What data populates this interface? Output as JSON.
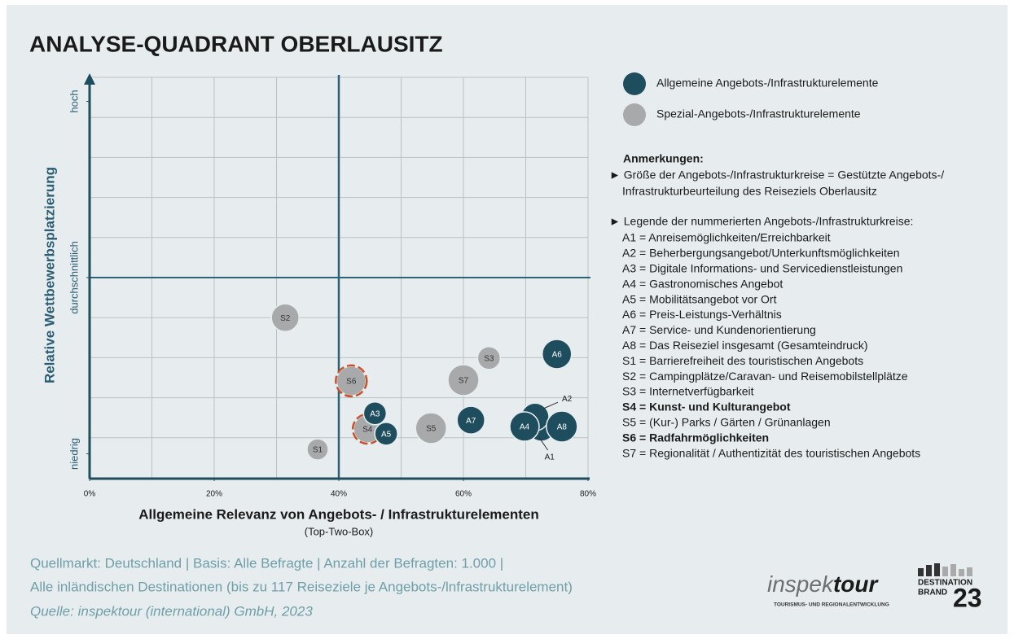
{
  "chart_data": {
    "type": "bubble",
    "title": "ANALYSE-QUADRANT OBERLAUSITZ",
    "xlabel": "Allgemeine Relevanz von Angebots- / Infrastrukturelementen",
    "xlabel_sub": "(Top-Two-Box)",
    "ylabel": "Relative Wettbewerbsplatzierung",
    "xlim": [
      0,
      80
    ],
    "ylim": [
      0,
      100
    ],
    "xticks": [
      {
        "value": 0,
        "label": "0%"
      },
      {
        "value": 20,
        "label": "20%"
      },
      {
        "value": 40,
        "label": "40%"
      },
      {
        "value": 60,
        "label": "60%"
      },
      {
        "value": 80,
        "label": "80%"
      }
    ],
    "yticks": [
      {
        "value": 94,
        "label": "hoch"
      },
      {
        "value": 50,
        "label": "durchschnittlich"
      },
      {
        "value": 6,
        "label": "niedrig"
      }
    ],
    "grid": true,
    "grid_divisions": {
      "x": 8,
      "y": 10
    },
    "quadrant": {
      "x": 40,
      "y": 50
    },
    "series": [
      {
        "name": "Allgemeine Angebots-/Infrastrukturelemente",
        "color": "#1e4d5e",
        "label_color": "#ffffff",
        "labels": [
          "A1",
          "A2",
          "A3",
          "A4",
          "A5",
          "A6",
          "A7",
          "A8"
        ],
        "x": [
          72.5,
          71.5,
          45.8,
          69.8,
          47.6,
          75.0,
          61.2,
          75.8
        ],
        "y": [
          12.6,
          15.2,
          16.1,
          12.8,
          11.0,
          30.9,
          14.4,
          12.8
        ],
        "sizes": [
          17,
          17,
          14,
          18,
          14,
          18,
          17,
          19
        ],
        "callouts": [
          "below",
          "above",
          null,
          null,
          null,
          null,
          null,
          null
        ]
      },
      {
        "name": "Spezial-Angebots-/Infrastrukturelemente",
        "color": "#a7a9ab",
        "label_color": "#333333",
        "labels": [
          "S1",
          "S2",
          "S3",
          "S4",
          "S5",
          "S6",
          "S7"
        ],
        "x": [
          36.6,
          31.4,
          64.1,
          44.6,
          54.8,
          42.0,
          60.0
        ],
        "y": [
          7.1,
          40.0,
          29.9,
          12.2,
          12.4,
          24.2,
          24.4
        ],
        "sizes": [
          13,
          17,
          14,
          17,
          19,
          18,
          19
        ],
        "highlight": [
          false,
          false,
          false,
          true,
          false,
          true,
          false
        ]
      }
    ],
    "notes_title": "Anmerkungen:",
    "notes": [
      "► Größe der Angebots-/Infrastrukturkreise = Gestützte Angebots-/",
      "Infrastrukturbeurteilung des Reiseziels Oberlausitz"
    ],
    "key_title": "► Legende der nummerierten Angebots-/Infrastrukturkreise:",
    "key_items": [
      {
        "text": "A1 = Anreisemöglichkeiten/Erreichbarkeit",
        "bold": false
      },
      {
        "text": "A2 = Beherbergungsangebot/Unterkunftsmöglichkeiten",
        "bold": false
      },
      {
        "text": "A3 = Digitale Informations- und Servicedienstleistungen",
        "bold": false
      },
      {
        "text": "A4 = Gastronomisches Angebot",
        "bold": false
      },
      {
        "text": "A5 = Mobilitätsangebot vor Ort",
        "bold": false
      },
      {
        "text": "A6 = Preis-Leistungs-Verhältnis",
        "bold": false
      },
      {
        "text": "A7 = Service- und Kundenorientierung",
        "bold": false
      },
      {
        "text": "A8 = Das Reiseziel insgesamt (Gesamteindruck)",
        "bold": false
      },
      {
        "text": "S1 = Barrierefreiheit des touristischen Angebots",
        "bold": false
      },
      {
        "text": "S2 = Campingplätze/Caravan- und Reisemobilstellplätze",
        "bold": false
      },
      {
        "text": "S3 = Internetverfügbarkeit",
        "bold": false
      },
      {
        "text": "S4 = Kunst- und Kulturangebot",
        "bold": true
      },
      {
        "text": "S5 = (Kur-) Parks / Gärten / Grünanlagen",
        "bold": false
      },
      {
        "text": "S6 = Radfahrmöglichkeiten",
        "bold": true
      },
      {
        "text": "S7 = Regionalität / Authentizität des touristischen Angebots",
        "bold": false
      }
    ],
    "footer": [
      "Quellmarkt: Deutschland | Basis: Alle Befragte | Anzahl der Befragten: 1.000 |",
      "Alle inländischen Destinationen (bis zu 117 Reiseziele je Angebots-/lnfrastrukturelement)",
      "Quelle: inspektour (international) GmbH, 2023"
    ],
    "logo1": {
      "left": "inspek",
      "right": "tour",
      "tagline": "TOURISMUS- UND REGIONALENTWICKLUNG"
    },
    "logo2": {
      "line1": "DESTINATION",
      "line2": "BRAND",
      "number": "23"
    }
  }
}
